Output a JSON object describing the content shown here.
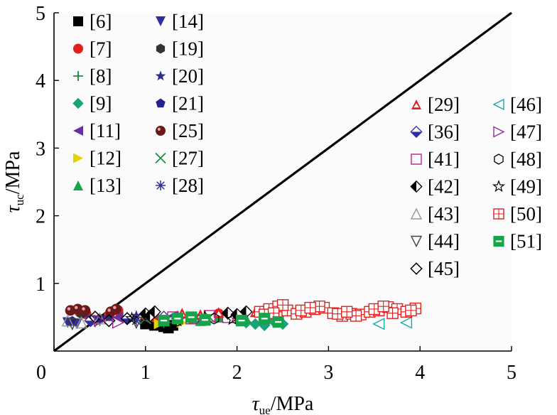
{
  "chart_data": {
    "type": "scatter",
    "xlabel": {
      "symbol": "τ",
      "sub": "ue",
      "unit": "/MPa"
    },
    "ylabel": {
      "symbol": "τ",
      "sub": "uc",
      "unit": "/MPa"
    },
    "xlim": [
      0,
      5
    ],
    "ylim": [
      0,
      5
    ],
    "x_ticks": [
      "0",
      "1",
      "2",
      "3",
      "4",
      "5"
    ],
    "y_ticks": [
      "1",
      "2",
      "3",
      "4",
      "5"
    ],
    "reference_line": {
      "from": [
        0,
        0
      ],
      "to": [
        5,
        5
      ],
      "label": ""
    },
    "series": [
      {
        "name": "[6]",
        "marker": "square-filled",
        "color": "#000000",
        "x": [
          1.0,
          1.1,
          1.15,
          1.2,
          1.25,
          1.3
        ],
        "y": [
          0.4,
          0.38,
          0.4,
          0.36,
          0.34,
          0.38
        ]
      },
      {
        "name": "[7]",
        "marker": "circle-filled",
        "color": "#e0201e",
        "x": [
          0.28,
          0.35,
          0.6,
          0.7,
          1.1,
          1.5,
          1.8
        ],
        "y": [
          0.58,
          0.55,
          0.52,
          0.6,
          0.5,
          0.48,
          0.55
        ]
      },
      {
        "name": "[8]",
        "marker": "plus",
        "color": "#1a8a3c",
        "x": [
          0.5,
          0.8,
          1.2,
          1.5,
          2.0
        ],
        "y": [
          0.45,
          0.48,
          0.42,
          0.5,
          0.45
        ]
      },
      {
        "name": "[9]",
        "marker": "diamond-filled",
        "color": "#1aa37a",
        "x": [
          2.1,
          2.2,
          2.3,
          2.4,
          2.5
        ],
        "y": [
          0.42,
          0.4,
          0.38,
          0.44,
          0.4
        ]
      },
      {
        "name": "[11]",
        "marker": "tri-left-filled",
        "color": "#6a2fa0",
        "x": [
          0.7,
          1.0,
          1.3
        ],
        "y": [
          0.5,
          0.48,
          0.52
        ]
      },
      {
        "name": "[12]",
        "marker": "tri-right-filled",
        "color": "#e6d200",
        "x": [
          1.15,
          1.4
        ],
        "y": [
          0.4,
          0.42
        ]
      },
      {
        "name": "[13]",
        "marker": "tri-up-filled",
        "color": "#17a34a",
        "x": [
          1.6,
          1.8,
          2.1
        ],
        "y": [
          0.45,
          0.5,
          0.48
        ]
      },
      {
        "name": "[14]",
        "marker": "tri-down-filled",
        "color": "#2e2e9e",
        "x": [
          0.15,
          0.25,
          0.4
        ],
        "y": [
          0.42,
          0.4,
          0.45
        ]
      },
      {
        "name": "[19]",
        "marker": "hexagon-filled",
        "color": "#333333",
        "x": [
          0.3,
          0.65
        ],
        "y": [
          0.55,
          0.6
        ]
      },
      {
        "name": "[20]",
        "marker": "star-filled",
        "color": "#2e2e8a",
        "x": [
          0.6,
          0.9
        ],
        "y": [
          0.5,
          0.52
        ]
      },
      {
        "name": "[21]",
        "marker": "pentagon-filled",
        "color": "#22228a",
        "x": [
          0.2,
          0.5
        ],
        "y": [
          0.44,
          0.48
        ]
      },
      {
        "name": "[25]",
        "marker": "sphere",
        "color": "#6a1a1a",
        "x": [
          0.18,
          0.26,
          0.34,
          0.62,
          0.68
        ],
        "y": [
          0.6,
          0.62,
          0.6,
          0.58,
          0.62
        ]
      },
      {
        "name": "[27]",
        "marker": "cross",
        "color": "#1a8a3c",
        "x": [
          1.0,
          1.7
        ],
        "y": [
          0.48,
          0.5
        ]
      },
      {
        "name": "[28]",
        "marker": "asterisk",
        "color": "#2e2e9e",
        "x": [
          0.9,
          1.6
        ],
        "y": [
          0.45,
          0.47
        ]
      },
      {
        "name": "[29]",
        "marker": "tri-up-outline-thick",
        "color": "#e0201e",
        "x": [
          1.0,
          1.2,
          1.4,
          1.6,
          1.8,
          2.0,
          2.2
        ],
        "y": [
          0.55,
          0.52,
          0.56,
          0.54,
          0.57,
          0.55,
          0.58
        ]
      },
      {
        "name": "[36]",
        "marker": "diamond-half",
        "color": "#2e2e9e",
        "x": [
          0.4,
          0.8,
          1.2
        ],
        "y": [
          0.45,
          0.48,
          0.5
        ]
      },
      {
        "name": "[41]",
        "marker": "square-open",
        "color": "#c0208a",
        "x": [
          1.3,
          1.5,
          1.7,
          1.9
        ],
        "y": [
          0.5,
          0.48,
          0.52,
          0.5
        ]
      },
      {
        "name": "[42]",
        "marker": "diamond-half-black",
        "color": "#000000",
        "x": [
          1.0,
          1.05,
          1.1,
          1.9,
          2.0,
          2.1
        ],
        "y": [
          0.55,
          0.52,
          0.58,
          0.56,
          0.54,
          0.58
        ]
      },
      {
        "name": "[43]",
        "marker": "tri-up-open",
        "color": "#999999",
        "x": [
          0.15,
          0.3,
          0.5
        ],
        "y": [
          0.45,
          0.42,
          0.48
        ]
      },
      {
        "name": "[44]",
        "marker": "tri-down-open",
        "color": "#444444",
        "x": [
          0.2,
          0.45,
          0.9
        ],
        "y": [
          0.4,
          0.44,
          0.42
        ]
      },
      {
        "name": "[45]",
        "marker": "diamond-open",
        "color": "#000000",
        "x": [
          0.45,
          0.6,
          0.8
        ],
        "y": [
          0.5,
          0.45,
          0.48
        ]
      },
      {
        "name": "[46]",
        "marker": "tri-left-open",
        "color": "#19a8b0",
        "x": [
          3.55,
          3.85
        ],
        "y": [
          0.4,
          0.42
        ]
      },
      {
        "name": "[47]",
        "marker": "tri-right-open",
        "color": "#9a2a9a",
        "x": [
          0.5,
          0.7,
          1.6
        ],
        "y": [
          0.45,
          0.42,
          0.48
        ]
      },
      {
        "name": "[48]",
        "marker": "hexagon-open",
        "color": "#000000",
        "x": [
          1.35,
          1.75
        ],
        "y": [
          0.45,
          0.48
        ]
      },
      {
        "name": "[49]",
        "marker": "star-open",
        "color": "#000000",
        "x": [
          0.85,
          1.35,
          1.65,
          1.95
        ],
        "y": [
          0.48,
          0.45,
          0.5,
          0.47
        ]
      },
      {
        "name": "[50]",
        "marker": "square-grid",
        "color": "#e0201e",
        "x": [
          2.25,
          2.35,
          2.45,
          2.55,
          2.65,
          2.75,
          2.85,
          2.95,
          3.05,
          3.15,
          3.25,
          3.35,
          3.45,
          3.55,
          3.65,
          3.75,
          3.85,
          3.95,
          2.3,
          2.5,
          2.7,
          2.9,
          3.1,
          3.3,
          3.5,
          3.7,
          3.9,
          2.4,
          2.8,
          3.2,
          3.6
        ],
        "y": [
          0.58,
          0.62,
          0.66,
          0.6,
          0.55,
          0.58,
          0.62,
          0.64,
          0.56,
          0.52,
          0.55,
          0.54,
          0.58,
          0.6,
          0.65,
          0.62,
          0.58,
          0.63,
          0.54,
          0.68,
          0.6,
          0.66,
          0.55,
          0.52,
          0.62,
          0.56,
          0.6,
          0.56,
          0.64,
          0.58,
          0.66
        ]
      },
      {
        "name": "[51]",
        "marker": "square-half-green",
        "color": "#17a34a",
        "x": [
          1.2,
          1.35,
          1.5,
          1.65,
          2.05,
          2.3,
          2.45
        ],
        "y": [
          0.45,
          0.48,
          0.5,
          0.46,
          0.45,
          0.48,
          0.43
        ]
      }
    ]
  }
}
